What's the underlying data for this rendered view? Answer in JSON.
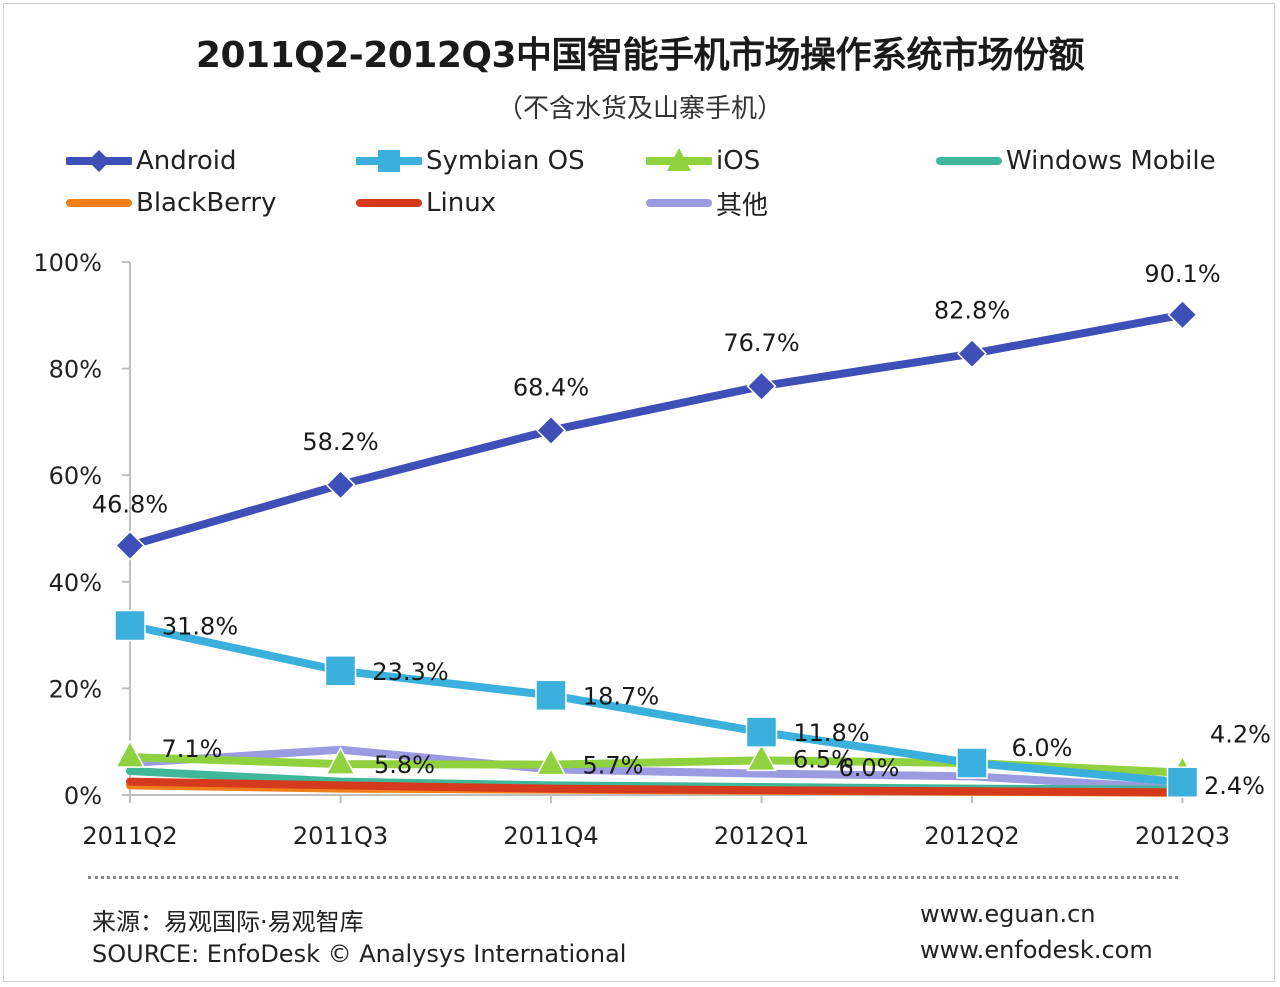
{
  "chart_data": {
    "type": "line",
    "title": "2011Q2-2012Q3中国智能手机市场操作系统市场份额",
    "subtitle": "（不含水货及山寨手机）",
    "categories": [
      "2011Q2",
      "2011Q3",
      "2011Q4",
      "2012Q1",
      "2012Q2",
      "2012Q3"
    ],
    "y_ticks": [
      "0%",
      "20%",
      "40%",
      "60%",
      "80%",
      "100%"
    ],
    "ylim": [
      0,
      100
    ],
    "grid": false,
    "legend_position": "top",
    "series": [
      {
        "name": "Android",
        "color": "#3f4fb8",
        "marker": "diamond",
        "values": [
          46.8,
          58.2,
          68.4,
          76.7,
          82.8,
          90.1
        ],
        "labels": [
          "46.8%",
          "58.2%",
          "68.4%",
          "76.7%",
          "82.8%",
          "90.1%"
        ]
      },
      {
        "name": "Symbian OS",
        "color": "#3bb0dc",
        "marker": "square",
        "values": [
          31.8,
          23.3,
          18.7,
          11.8,
          6.0,
          2.4
        ],
        "labels": [
          "31.8%",
          "23.3%",
          "18.7%",
          "11.8%",
          "6.0%",
          "2.4%"
        ]
      },
      {
        "name": "iOS",
        "color": "#8fd13f",
        "marker": "triangle",
        "values": [
          7.1,
          5.8,
          5.7,
          6.5,
          6.0,
          4.2
        ],
        "labels": [
          "7.1%",
          "5.8%",
          "5.7%",
          "6.5%",
          "6.0%",
          "4.2%"
        ]
      },
      {
        "name": "Windows Mobile",
        "color": "#3fb89a",
        "marker": "none",
        "values": [
          4.5,
          2.5,
          1.8,
          1.5,
          1.2,
          1.0
        ],
        "labels": []
      },
      {
        "name": "BlackBerry",
        "color": "#f07f1c",
        "marker": "none",
        "values": [
          1.8,
          1.2,
          1.0,
          0.8,
          0.6,
          0.4
        ],
        "labels": []
      },
      {
        "name": "Linux",
        "color": "#d63a1e",
        "marker": "none",
        "values": [
          2.5,
          1.8,
          1.2,
          0.9,
          0.7,
          0.5
        ],
        "labels": []
      },
      {
        "name": "其他",
        "color": "#9a9be0",
        "marker": "none",
        "values": [
          6.0,
          8.5,
          4.8,
          4.0,
          3.5,
          1.2
        ],
        "labels": []
      }
    ]
  },
  "source": {
    "line1": "来源：易观国际·易观智库",
    "line2": "SOURCE: EnfoDesk © Analysys International",
    "url1": "www.eguan.cn",
    "url2": "www.enfodesk.com"
  }
}
